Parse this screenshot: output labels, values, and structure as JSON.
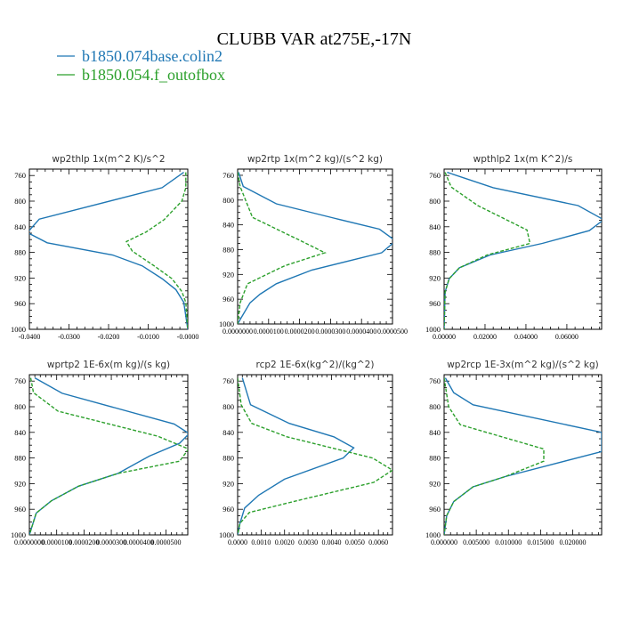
{
  "title": "CLUBB VAR at275E,-17N",
  "legend": [
    {
      "label": "b1850.074base.colin2",
      "color": "#1f77b4"
    },
    {
      "label": "b1850.054.f_outofbox",
      "color": "#2ca02c"
    }
  ],
  "chart_data": [
    {
      "type": "line",
      "title": "wp2thlp   1x(m^2 K)/s^2",
      "xlim": [
        -0.04,
        0.0
      ],
      "ylim": [
        1000,
        750
      ],
      "xticks": [
        -0.04,
        -0.03,
        -0.02,
        -0.01,
        0.0
      ],
      "xtick_labels": [
        "-0.0400",
        "-0.0300",
        "-0.0200",
        "-0.0100",
        "-0.0000"
      ],
      "yticks": [
        760,
        800,
        840,
        880,
        920,
        960,
        1000
      ],
      "series": [
        {
          "name": "b1850.074base.colin2",
          "color": "#1f77b4",
          "dash": "",
          "x": [
            -0.001,
            -0.0065,
            -0.0375,
            -0.0405,
            -0.0355,
            -0.019,
            -0.0115,
            -0.0065,
            -0.003,
            -0.001,
            0.0
          ],
          "y": [
            755,
            779,
            828,
            849,
            865,
            884,
            901,
            921,
            938,
            958,
            1000
          ]
        },
        {
          "name": "b1850.054.f_outofbox",
          "color": "#2ca02c",
          "dash": "4,2",
          "x": [
            -0.0005,
            -0.0005,
            -0.0015,
            -0.006,
            -0.0105,
            -0.0155,
            -0.014,
            -0.0085,
            -0.004,
            -0.0015,
            -0.0005,
            0.0
          ],
          "y": [
            755,
            779,
            800,
            829,
            848,
            863,
            878,
            901,
            921,
            941,
            958,
            1000
          ]
        }
      ]
    },
    {
      "type": "line",
      "title": "wp2rtp   1x(m^2 kg)/(s^2 kg)",
      "xlim": [
        0.0,
        5e-05
      ],
      "ylim": [
        1000,
        750
      ],
      "xticks": [
        0.0,
        1e-05,
        2e-05,
        3e-05,
        4e-05,
        5e-05
      ],
      "xtick_labels": [
        "0.0000000",
        "0.0000100",
        "0.0000200",
        "0.0000300",
        "0.0000400",
        "0.0000500"
      ],
      "yticks": [
        760,
        800,
        840,
        880,
        920,
        960,
        1000
      ],
      "series": [
        {
          "name": "b1850.074base.colin2",
          "color": "#1f77b4",
          "dash": "",
          "x": [
            3e-07,
            1.8e-06,
            1.25e-05,
            3.1e-05,
            4.58e-05,
            5.1e-05,
            4.65e-05,
            2.4e-05,
            1.25e-05,
            7.2e-06,
            4e-06,
            1.5e-06,
            0.0
          ],
          "y": [
            755,
            778,
            806,
            829,
            847,
            866,
            885,
            913,
            935,
            952,
            966,
            987,
            1000
          ]
        },
        {
          "name": "b1850.054.f_outofbox",
          "color": "#2ca02c",
          "dash": "4,2",
          "x": [
            0.0,
            8e-07,
            4.8e-06,
            2.05e-05,
            2.82e-05,
            1.52e-05,
            3.2e-06,
            8e-07,
            0.0
          ],
          "y": [
            755,
            778,
            828,
            866,
            885,
            906,
            935,
            966,
            1000
          ]
        }
      ]
    },
    {
      "type": "line",
      "title": "wpthlp2   1x(m K^2)/s",
      "xlim": [
        0.0,
        0.077
      ],
      "ylim": [
        1000,
        750
      ],
      "xticks": [
        0.0,
        0.02,
        0.04,
        0.06
      ],
      "xtick_labels": [
        "0.00000",
        "0.02000",
        "0.04000",
        "0.06000"
      ],
      "yticks": [
        760,
        800,
        840,
        880,
        920,
        960,
        1000
      ],
      "series": [
        {
          "name": "b1850.074base.colin2",
          "color": "#1f77b4",
          "dash": "",
          "x": [
            0.0015,
            0.024,
            0.0655,
            0.078,
            0.071,
            0.048,
            0.0225,
            0.0075,
            0.0025,
            0.0005,
            0.0
          ],
          "y": [
            755,
            779,
            807,
            829,
            846,
            866,
            884,
            904,
            921,
            942,
            1000
          ]
        },
        {
          "name": "b1850.054.f_outofbox",
          "color": "#2ca02c",
          "dash": "4,2",
          "x": [
            0.0005,
            0.0035,
            0.0165,
            0.0405,
            0.042,
            0.021,
            0.0075,
            0.0025,
            0.0005,
            0.0
          ],
          "y": [
            755,
            778,
            807,
            845,
            866,
            884,
            904,
            921,
            942,
            1000
          ]
        }
      ]
    },
    {
      "type": "line",
      "title": "wprtp2   1E-6x(m kg)/(s kg)",
      "xlim": [
        0.0,
        5.8e-05
      ],
      "ylim": [
        1000,
        750
      ],
      "xticks": [
        0.0,
        1e-05,
        2e-05,
        3e-05,
        4e-05,
        5e-05
      ],
      "xtick_labels": [
        "0.0000000",
        "0.0000100",
        "0.0000200",
        "0.0000300",
        "0.0000400",
        "0.0000500"
      ],
      "yticks": [
        760,
        800,
        840,
        880,
        920,
        960,
        1000
      ],
      "series": [
        {
          "name": "b1850.074base.colin2",
          "color": "#1f77b4",
          "dash": "",
          "x": [
            2e-06,
            1.2e-05,
            5.3e-05,
            5.85e-05,
            5.5e-05,
            4.4e-05,
            4.05e-05,
            3.25e-05,
            1.8e-05,
            8e-06,
            2.5e-06,
            0.0
          ],
          "y": [
            755,
            779,
            827,
            842,
            857,
            877,
            885,
            904,
            924,
            947,
            966,
            1000
          ]
        },
        {
          "name": "b1850.054.f_outofbox",
          "color": "#2ca02c",
          "dash": "4,2",
          "x": [
            5e-07,
            1.5e-06,
            1.05e-05,
            4.7e-05,
            5.83e-05,
            5.5e-05,
            3.25e-05,
            1.8e-05,
            8e-06,
            2.5e-06,
            0.0
          ],
          "y": [
            755,
            778,
            807,
            846,
            866,
            885,
            904,
            924,
            947,
            966,
            1000
          ]
        }
      ]
    },
    {
      "type": "line",
      "title": "rcp2   1E-6x(kg^2)/(kg^2)",
      "xlim": [
        0.0,
        0.0066
      ],
      "ylim": [
        1000,
        750
      ],
      "xticks": [
        0.0,
        0.001,
        0.002,
        0.003,
        0.004,
        0.005,
        0.006
      ],
      "xtick_labels": [
        "0.0000",
        "0.0010",
        "0.0020",
        "0.0030",
        "0.0040",
        "0.0050",
        "0.0060"
      ],
      "yticks": [
        760,
        800,
        840,
        880,
        920,
        960,
        1000
      ],
      "series": [
        {
          "name": "b1850.074base.colin2",
          "color": "#1f77b4",
          "dash": "",
          "x": [
            0.0002,
            0.00055,
            0.0022,
            0.0041,
            0.00495,
            0.0045,
            0.002,
            0.0009,
            0.0003,
            0.0001,
            0.0
          ],
          "y": [
            755,
            797,
            826,
            847,
            864,
            880,
            913,
            938,
            958,
            982,
            1000
          ]
        },
        {
          "name": "b1850.054.f_outofbox",
          "color": "#2ca02c",
          "dash": "4,2",
          "x": [
            0.0,
            0.00015,
            0.0006,
            0.0021,
            0.00575,
            0.0066,
            0.0058,
            0.0025,
            0.0005,
            0.0001,
            0.0
          ],
          "y": [
            755,
            797,
            826,
            847,
            880,
            899,
            918,
            947,
            965,
            982,
            1000
          ]
        }
      ]
    },
    {
      "type": "line",
      "title": "wp2rcp   1E-3x(m^2 kg)/(s^2 kg)",
      "xlim": [
        0.0,
        0.0245
      ],
      "ylim": [
        1000,
        750
      ],
      "xticks": [
        0.0,
        0.005,
        0.01,
        0.015,
        0.02
      ],
      "xtick_labels": [
        "0.000000",
        "0.005000",
        "0.010000",
        "0.015000",
        "0.020000"
      ],
      "yticks": [
        760,
        800,
        840,
        880,
        920,
        960,
        1000
      ],
      "series": [
        {
          "name": "b1850.074base.colin2",
          "color": "#1f77b4",
          "dash": "",
          "x": [
            0.0002,
            0.0015,
            0.0045,
            0.0245,
            0.0245,
            0.0095,
            0.0045,
            0.0015,
            0.0004,
            0.0
          ],
          "y": [
            755,
            778,
            797,
            840,
            870,
            909,
            925,
            948,
            970,
            1000
          ]
        },
        {
          "name": "b1850.054.f_outofbox",
          "color": "#2ca02c",
          "dash": "4,2",
          "x": [
            0.0,
            0.0007,
            0.0025,
            0.0155,
            0.0155,
            0.0095,
            0.0045,
            0.0015,
            0.0004,
            0.0
          ],
          "y": [
            755,
            800,
            828,
            866,
            885,
            909,
            925,
            948,
            970,
            1000
          ]
        }
      ]
    }
  ]
}
